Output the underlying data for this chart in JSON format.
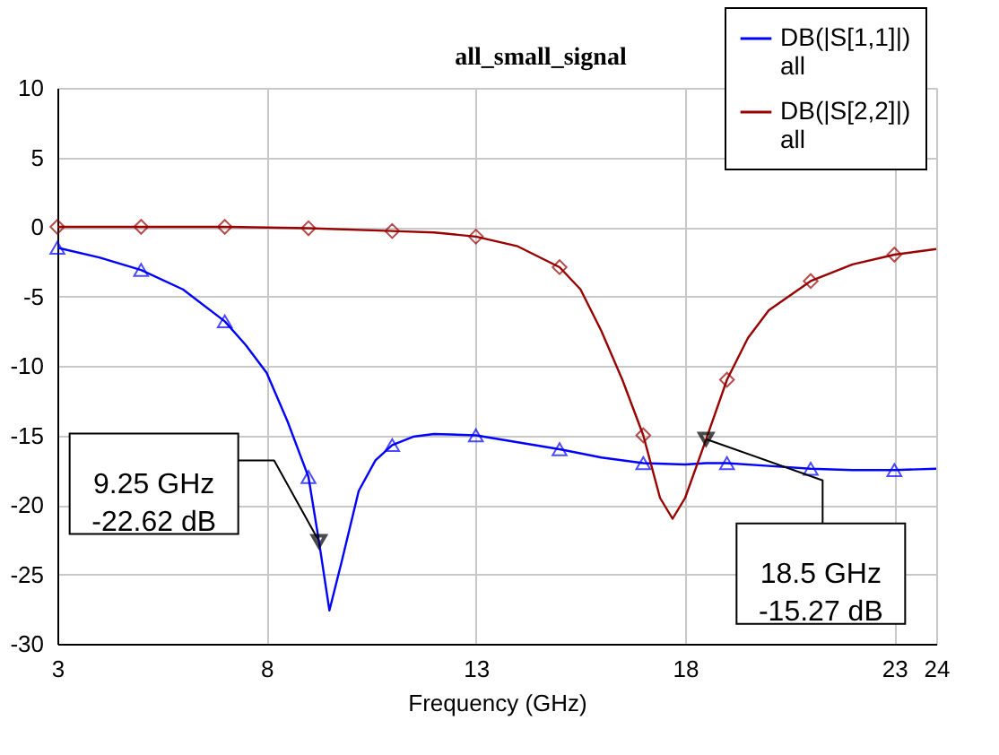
{
  "chart_data": {
    "type": "line",
    "title": "all_small_signal",
    "xlabel": "Frequency (GHz)",
    "xlim": [
      3,
      24
    ],
    "xticks": [
      3,
      8,
      13,
      18,
      23,
      24
    ],
    "ylim": [
      -30,
      10
    ],
    "yticks": [
      -30,
      -25,
      -20,
      -15,
      -10,
      -5,
      0,
      5,
      10
    ],
    "grid": true,
    "legend": "top right",
    "line_style": "solid",
    "series": [
      {
        "name": "DB(|S[1,1]|)\nall",
        "color": "#0000ff",
        "marker": "none",
        "x": [
          3,
          4,
          5,
          6,
          7,
          7.5,
          8,
          8.5,
          9,
          9.25,
          9.5,
          9.8,
          10.2,
          10.6,
          11,
          11.5,
          12,
          13,
          14,
          15,
          16,
          17,
          18,
          18.5,
          19,
          20,
          21,
          22,
          23,
          24
        ],
        "values": [
          -1.5,
          -2.2,
          -3.1,
          -4.5,
          -6.8,
          -8.5,
          -10.5,
          -14,
          -18,
          -22.62,
          -27.6,
          -24,
          -19,
          -16.8,
          -15.7,
          -15.1,
          -14.9,
          -15,
          -15.5,
          -16,
          -16.6,
          -17,
          -17.1,
          -17,
          -17,
          -17.2,
          -17.4,
          -17.5,
          -17.5,
          -17.4
        ]
      },
      {
        "color": "#0000ff",
        "type": "scatter",
        "marker": "triangle",
        "x": [
          3,
          5,
          7,
          9,
          11,
          13,
          15,
          17,
          19,
          21,
          23
        ],
        "values": [
          -1.5,
          -3.1,
          -6.8,
          -18,
          -15.7,
          -15,
          -16,
          -17,
          -17,
          -17.4,
          -17.5
        ]
      },
      {
        "name": "DB(|S[2,2]|)\nall",
        "color": "#990000",
        "marker": "none",
        "x": [
          3,
          5,
          7,
          9,
          11,
          12,
          13,
          14,
          15,
          15.5,
          16,
          16.5,
          17,
          17.4,
          17.7,
          18,
          18.5,
          19,
          19.5,
          20,
          21,
          22,
          23,
          24
        ],
        "values": [
          0,
          0,
          0,
          -0.1,
          -0.3,
          -0.4,
          -0.7,
          -1.4,
          -2.9,
          -4.5,
          -7.5,
          -11,
          -15,
          -19.5,
          -21,
          -19.5,
          -15.3,
          -11,
          -8,
          -6,
          -3.9,
          -2.7,
          -2,
          -1.6
        ]
      },
      {
        "color": "#990000",
        "type": "scatter",
        "marker": "diamond",
        "x": [
          3,
          5,
          7,
          9,
          11,
          13,
          15,
          17,
          19,
          21,
          23
        ],
        "values": [
          0,
          0,
          0,
          -0.1,
          -0.3,
          -0.7,
          -2.9,
          -15,
          -11,
          -3.9,
          -2
        ]
      }
    ],
    "annotations": [
      {
        "text": "9.25 GHz\n-22.62 dB",
        "x": 9.25,
        "y": -22.62
      },
      {
        "text": "18.5 GHz\n-15.27 dB",
        "x": 18.5,
        "y": -15.27
      }
    ]
  }
}
